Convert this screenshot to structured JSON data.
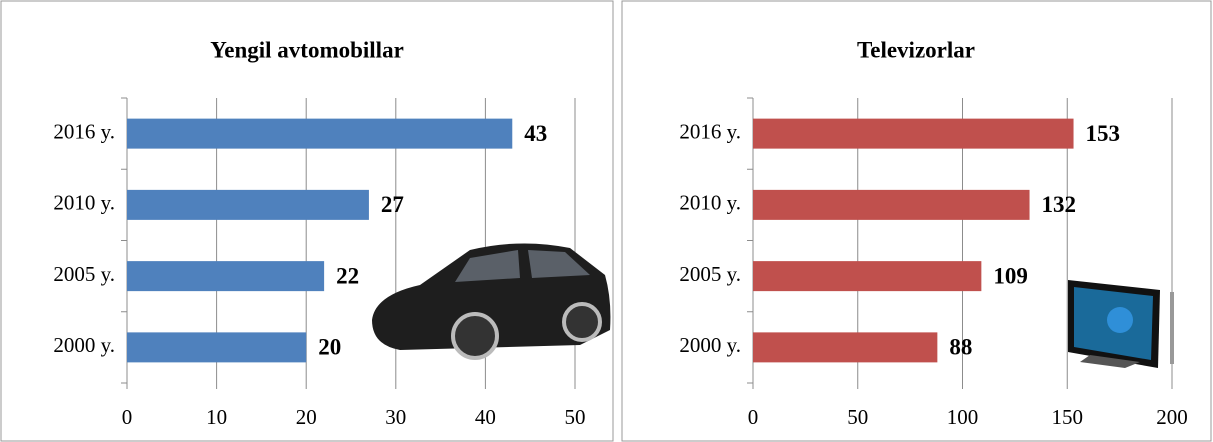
{
  "chart_data": [
    {
      "type": "barh",
      "title": "Yengil avtomobillar",
      "categories": [
        "2000 y.",
        "2005 y.",
        "2010 y.",
        "2016 y."
      ],
      "values": [
        20,
        22,
        27,
        43
      ],
      "color": "#4f81bd",
      "xlim": [
        0,
        50
      ],
      "xticks": [
        0,
        10,
        20,
        30,
        40,
        50
      ],
      "grid": true
    },
    {
      "type": "barh",
      "title": "Televizorlar",
      "categories": [
        "2000 y.",
        "2005 y.",
        "2010 y.",
        "2016 y."
      ],
      "values": [
        88,
        109,
        132,
        153
      ],
      "color": "#c0504d",
      "xlim": [
        0,
        200
      ],
      "xticks": [
        0,
        50,
        100,
        150,
        200
      ],
      "grid": true
    }
  ]
}
